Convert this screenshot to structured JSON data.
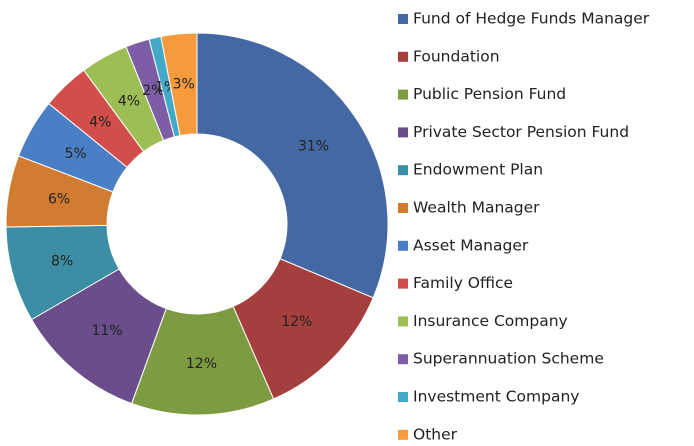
{
  "chart_data": {
    "type": "donut",
    "categories": [
      "Fund of Hedge Funds Manager",
      "Foundation",
      "Public Pension Fund",
      "Private Sector Pension Fund",
      "Endowment Plan",
      "Wealth Manager",
      "Asset Manager",
      "Family Office",
      "Insurance Company",
      "Superannuation Scheme",
      "Investment Company",
      "Other"
    ],
    "values": [
      31,
      12,
      12,
      11,
      8,
      6,
      5,
      4,
      4,
      2,
      1,
      3
    ],
    "value_labels": [
      "31%",
      "12%",
      "12%",
      "11%",
      "8%",
      "6%",
      "5%",
      "4%",
      "4%",
      "2%",
      "1%",
      "3%"
    ],
    "colors": [
      "#4368a4",
      "#a53f3d",
      "#7d9b41",
      "#6a4e8c",
      "#3c8ea5",
      "#d27c32",
      "#4a7fc6",
      "#d24e4b",
      "#9dbe55",
      "#7d5ea6",
      "#44a9c6",
      "#f59b3e"
    ],
    "legend": "right"
  }
}
